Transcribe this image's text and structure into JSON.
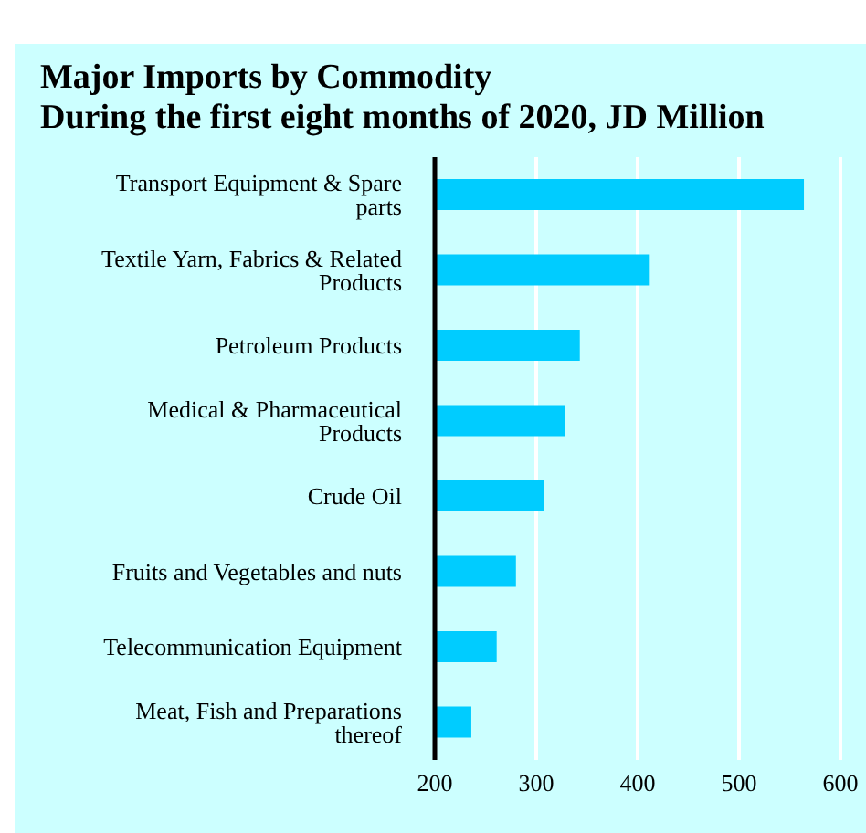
{
  "chart_data": {
    "type": "bar",
    "orientation": "horizontal",
    "title": "Major Imports by Commodity\nDuring the first eight months of 2020, JD Million",
    "categories": [
      "Transport Equipment & Spare parts",
      "Textile Yarn, Fabrics & Related Products",
      "Petroleum Products",
      "Medical & Pharmaceutical Products",
      "Crude Oil",
      "Fruits and Vegetables and nuts",
      "Telecommunication Equipment",
      "Meat, Fish and Preparations thereof"
    ],
    "values": [
      564,
      412,
      343,
      328,
      308,
      280,
      261,
      236
    ],
    "color": "#00ccff",
    "xlim": [
      200,
      600
    ],
    "xticks": [
      200,
      300,
      400,
      500,
      600
    ],
    "grid": "x"
  }
}
